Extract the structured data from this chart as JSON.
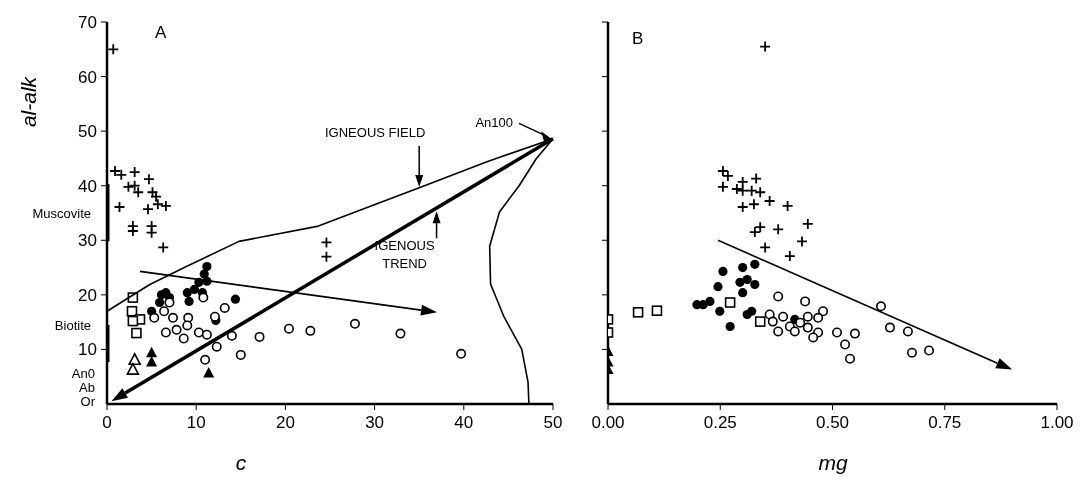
{
  "chart_data": [
    {
      "type": "scatter",
      "title": "A",
      "xlabel": "c",
      "ylabel": "al-alk",
      "xlim": [
        0,
        50
      ],
      "xticks": [
        0,
        10,
        20,
        30,
        40,
        50
      ],
      "ylim": [
        0,
        70
      ],
      "yticks": [
        10,
        20,
        30,
        40,
        50,
        60,
        70
      ],
      "grid": false,
      "annotations": [
        {
          "text": "IGNEOUS FIELD",
          "x": 35,
          "y": 39.6
        },
        "IGENOUS TREND",
        {
          "text": "An100",
          "x": 50,
          "y": 48.5
        },
        {
          "text": "Muscovite",
          "x": 0,
          "y": 35
        },
        {
          "text": "Biotite",
          "x": 0,
          "y": 14.5
        },
        "An0",
        "Ab",
        "Or"
      ],
      "series": [
        {
          "color": "#000000",
          "marker": "cross",
          "x": [
            0.7,
            0.9,
            1.6,
            3.1,
            4.7,
            2.4,
            3.1,
            3.5,
            5.1,
            5.5,
            4.6,
            5.7,
            6.6,
            1.4,
            2.9,
            2.9,
            5.0,
            5.0,
            6.3,
            24.6,
            24.6
          ],
          "values": [
            65,
            42.7,
            42,
            42.5,
            41.2,
            39.8,
            40,
            38.8,
            38.8,
            38,
            35.7,
            36.6,
            36.3,
            36.1,
            32.6,
            31.7,
            32.6,
            31.4,
            28.7,
            29.6,
            27
          ]
        },
        {
          "color": "#000000",
          "marker": "circle",
          "x": [
            11.2,
            10.9,
            10.3,
            9.8,
            9.0,
            9.2,
            11.2,
            10.7,
            6.6,
            7.0,
            6.1,
            5.9,
            5.0,
            14.4,
            12.2
          ],
          "values": [
            25.2,
            23.8,
            22.3,
            21,
            20.4,
            18.8,
            22.5,
            20.4,
            20.4,
            19.5,
            20,
            18.6,
            17,
            19.2,
            15.3
          ]
        },
        {
          "color": "#000000",
          "marker": "circle-open",
          "x": [
            10.8,
            13.2,
            12.1,
            7.0,
            5.3,
            6.4,
            7.4,
            9.1,
            9.0,
            7.8,
            6.6,
            8.6,
            10.3,
            11.2,
            14.0,
            12.3,
            15.0,
            11.0,
            17.1,
            20.4,
            22.8,
            27.8,
            32.9,
            39.7
          ],
          "values": [
            19.5,
            17.6,
            16,
            18.6,
            15.8,
            17,
            15.8,
            15.8,
            14.4,
            13.6,
            13.1,
            12,
            13.1,
            12.7,
            12.5,
            10.5,
            9,
            8.1,
            12.3,
            13.8,
            13.4,
            14.7,
            12.9,
            9.2
          ]
        },
        {
          "color": "#000000",
          "marker": "square-open",
          "x": [
            2.9,
            2.8,
            3.7,
            2.9,
            3.3
          ],
          "values": [
            19.5,
            17,
            15.5,
            15.2,
            13
          ]
        },
        {
          "color": "#000000",
          "marker": "triangle",
          "x": [
            5.0,
            5.0,
            11.4
          ],
          "values": [
            9.4,
            7.7,
            5.7
          ]
        },
        {
          "color": "#000000",
          "marker": "triangle-open",
          "x": [
            3.1,
            2.9
          ],
          "values": [
            8.1,
            6.3
          ]
        },
        {
          "type": "line",
          "color": "#000000",
          "marker": "none",
          "line_style": "solid",
          "x": [
            0,
            4.8,
            8.9,
            14.8,
            23.7,
            29.6,
            35.3,
            42.6,
            50
          ],
          "values": [
            17,
            21.9,
            25.2,
            29.8,
            32.6,
            36.3,
            39.8,
            44.4,
            48.6
          ]
        },
        {
          "type": "line",
          "color": "#000000",
          "marker": "none",
          "line_style": "solid",
          "x": [
            50,
            48.1,
            46.2,
            44,
            42.9,
            43,
            44.5,
            46.5,
            47.2,
            47.3
          ],
          "values": [
            48.6,
            44.9,
            40,
            35.2,
            28.9,
            22,
            16,
            10,
            4,
            0
          ]
        },
        {
          "type": "line",
          "color": "#000000",
          "marker": "none",
          "line_style": "solid",
          "x": [
            0,
            0
          ],
          "values": [
            29.8,
            40.3
          ]
        },
        {
          "type": "line",
          "color": "#000000",
          "marker": "none",
          "line_style": "solid",
          "x": [
            0,
            0
          ],
          "values": [
            7.7,
            14.5
          ]
        }
      ]
    },
    {
      "type": "scatter",
      "title": "B",
      "xlabel": "mg",
      "xlim": [
        0,
        1
      ],
      "xticks": [
        {
          "value": 0,
          "label": "0.00"
        },
        {
          "value": 0.25,
          "label": "0.25"
        },
        {
          "value": 0.5,
          "label": "0.50"
        },
        {
          "value": 0.75,
          "label": "0.75"
        },
        {
          "value": 1,
          "label": "1.00"
        }
      ],
      "ylim": [
        0,
        70
      ],
      "yticks": [
        10,
        20,
        30,
        40,
        50,
        60,
        70
      ],
      "tick_labels": "x",
      "grid": false,
      "series": [
        {
          "color": "#000000",
          "marker": "cross",
          "x": [
            0.35,
            0.256,
            0.267,
            0.33,
            0.256,
            0.3,
            0.287,
            0.32,
            0.339,
            0.3,
            0.36,
            0.4,
            0.3,
            0.325,
            0.339,
            0.327,
            0.379,
            0.445,
            0.432,
            0.35,
            0.405
          ],
          "values": [
            65.5,
            42.7,
            41.8,
            41.3,
            39.8,
            40.7,
            39.4,
            39.1,
            38.8,
            39.1,
            37.2,
            36.3,
            36.1,
            36.6,
            32.4,
            31.5,
            32,
            33,
            29.8,
            28.7,
            27.1
          ]
        },
        {
          "color": "#000000",
          "marker": "circle",
          "x": [
            0.256,
            0.3,
            0.327,
            0.245,
            0.294,
            0.31,
            0.327,
            0.3,
            0.198,
            0.212,
            0.227,
            0.249,
            0.31,
            0.32,
            0.272,
            0.416
          ],
          "values": [
            24.3,
            25,
            25.6,
            21.5,
            22.3,
            22.8,
            21.9,
            20.4,
            18.2,
            18.2,
            18.8,
            17,
            16.4,
            17,
            14.2,
            15.5
          ]
        },
        {
          "color": "#000000",
          "marker": "circle-open",
          "x": [
            0.379,
            0.439,
            0.479,
            0.468,
            0.445,
            0.36,
            0.39,
            0.367,
            0.428,
            0.405,
            0.445,
            0.379,
            0.416,
            0.468,
            0.457,
            0.51,
            0.55,
            0.528,
            0.539,
            0.608,
            0.628,
            0.668,
            0.677,
            0.715
          ],
          "values": [
            19.7,
            18.8,
            17,
            15.8,
            16,
            16.4,
            16,
            15.1,
            14.9,
            14.2,
            14,
            13.3,
            13.3,
            13.1,
            12.2,
            13.1,
            12.9,
            10.9,
            8.3,
            17.9,
            14,
            13.3,
            9.4,
            9.8
          ]
        },
        {
          "color": "#000000",
          "marker": "square-open",
          "x": [
            0,
            0,
            0.067,
            0.109,
            0.272,
            0.339
          ],
          "values": [
            15.5,
            13.1,
            16.8,
            17.1,
            18.6,
            15.1
          ]
        },
        {
          "color": "#000000",
          "marker": "triangle",
          "x": [
            0,
            0,
            0
          ],
          "values": [
            9.6,
            7.7,
            6.3
          ]
        }
      ]
    }
  ]
}
